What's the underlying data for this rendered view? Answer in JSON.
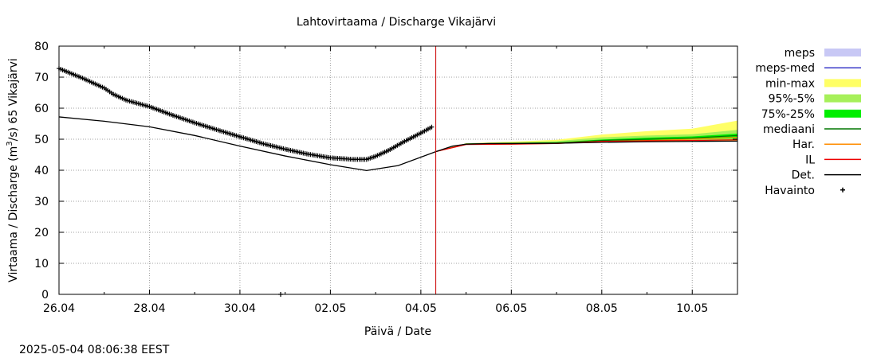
{
  "chart_data": {
    "type": "line",
    "title": "Lahtovirtaama / Discharge  Vikajärvi",
    "xlabel": "Päivä / Date",
    "ylabel_main": "Virtaama / Discharge (m",
    "ylabel_sup": "3",
    "ylabel_end": "/s)  65 Vikajärvi",
    "timestamp": "2025-05-04 08:06:38 EEST",
    "x_range_days": [
      0,
      15
    ],
    "ylim": [
      0,
      80
    ],
    "grid": true,
    "legend_position": "right",
    "xticks": [
      {
        "day": 0,
        "label": "26.04"
      },
      {
        "day": 2,
        "label": "28.04"
      },
      {
        "day": 4,
        "label": "30.04"
      },
      {
        "day": 6,
        "label": "02.05"
      },
      {
        "day": 8,
        "label": "04.05"
      },
      {
        "day": 10,
        "label": "06.05"
      },
      {
        "day": 12,
        "label": "08.05"
      },
      {
        "day": 14,
        "label": "10.05"
      }
    ],
    "yticks": [
      0,
      10,
      20,
      30,
      40,
      50,
      60,
      70,
      80
    ],
    "now_marker_day": 8.33,
    "legend": [
      {
        "key": "meps",
        "label": "meps",
        "kind": "band",
        "color": "#c8c8f5"
      },
      {
        "key": "meps_med",
        "label": "meps-med",
        "kind": "line",
        "color": "#3a3ac8"
      },
      {
        "key": "minmax",
        "label": "min-max",
        "kind": "band",
        "color": "#ffff66"
      },
      {
        "key": "p95_5",
        "label": "95%-5%",
        "kind": "band",
        "color": "#a6f05a"
      },
      {
        "key": "p75_25",
        "label": "75%-25%",
        "kind": "band",
        "color": "#00ee00"
      },
      {
        "key": "mediaani",
        "label": "mediaani",
        "kind": "line",
        "color": "#007700"
      },
      {
        "key": "har",
        "label": "Har.",
        "kind": "line",
        "color": "#ff8c00"
      },
      {
        "key": "il",
        "label": "IL",
        "kind": "line",
        "color": "#ee0000"
      },
      {
        "key": "det",
        "label": "Det.",
        "kind": "line",
        "color": "#000000"
      },
      {
        "key": "havainto",
        "label": "Havainto",
        "kind": "marker",
        "color": "#000000"
      }
    ],
    "series": {
      "det": {
        "days": [
          0,
          1,
          2,
          3,
          4,
          5,
          6,
          6.8,
          7.5,
          8.33,
          8.7,
          9.0,
          9.5,
          10,
          11,
          12,
          13,
          14,
          15
        ],
        "values": [
          57.2,
          55.8,
          54.0,
          51.2,
          47.8,
          44.6,
          41.8,
          39.9,
          41.5,
          46.0,
          47.8,
          48.4,
          48.6,
          48.6,
          48.7,
          49.0,
          49.2,
          49.3,
          49.4
        ]
      },
      "havainto": {
        "days": [
          0,
          0.5,
          1.0,
          1.2,
          1.5,
          2.0,
          2.5,
          3.0,
          3.5,
          4.0,
          4.5,
          5.0,
          5.5,
          6.0,
          6.5,
          6.8,
          7.0,
          7.3,
          7.6,
          8.0,
          8.25
        ],
        "values": [
          72.8,
          69.8,
          66.5,
          64.5,
          62.5,
          60.5,
          57.8,
          55.3,
          53.0,
          50.8,
          48.6,
          46.8,
          45.2,
          44.0,
          43.5,
          43.5,
          44.5,
          46.5,
          49.0,
          52.0,
          54.0
        ]
      },
      "har": {
        "days": [
          8.33,
          9.0,
          10,
          11,
          12,
          13,
          14,
          15
        ],
        "values": [
          46.0,
          48.4,
          48.6,
          48.7,
          49.3,
          49.6,
          50.0,
          50.6
        ]
      },
      "il": {
        "days": [
          8.33,
          9.0,
          10,
          11,
          12,
          13,
          14,
          15
        ],
        "values": [
          46.0,
          48.3,
          48.4,
          48.6,
          49.3,
          49.5,
          49.6,
          49.8
        ]
      },
      "mediaani": {
        "days": [
          8.33,
          9.0,
          10,
          11,
          12,
          13,
          14,
          15
        ],
        "values": [
          46.0,
          48.5,
          48.7,
          48.8,
          49.6,
          50.0,
          50.4,
          51.2
        ]
      },
      "minmax": {
        "days": [
          8.33,
          9.0,
          10,
          11,
          12,
          13,
          14,
          15
        ],
        "lower": [
          46.0,
          48.2,
          48.3,
          48.5,
          49.2,
          49.3,
          49.4,
          49.5
        ],
        "upper": [
          46.0,
          48.7,
          49.2,
          49.8,
          51.5,
          52.6,
          53.4,
          56.0
        ]
      },
      "p95_5": {
        "days": [
          8.33,
          9.0,
          10,
          11,
          12,
          13,
          14,
          15
        ],
        "lower": [
          46.0,
          48.3,
          48.4,
          48.6,
          49.3,
          49.4,
          49.6,
          49.8
        ],
        "upper": [
          46.0,
          48.6,
          49.0,
          49.4,
          50.6,
          51.2,
          51.6,
          53.0
        ]
      },
      "p75_25": {
        "days": [
          8.33,
          9.0,
          10,
          11,
          12,
          13,
          14,
          15
        ],
        "lower": [
          46.0,
          48.4,
          48.5,
          48.7,
          49.4,
          49.6,
          49.9,
          50.3
        ],
        "upper": [
          46.0,
          48.5,
          48.8,
          49.0,
          49.9,
          50.5,
          50.9,
          51.8
        ]
      }
    }
  }
}
